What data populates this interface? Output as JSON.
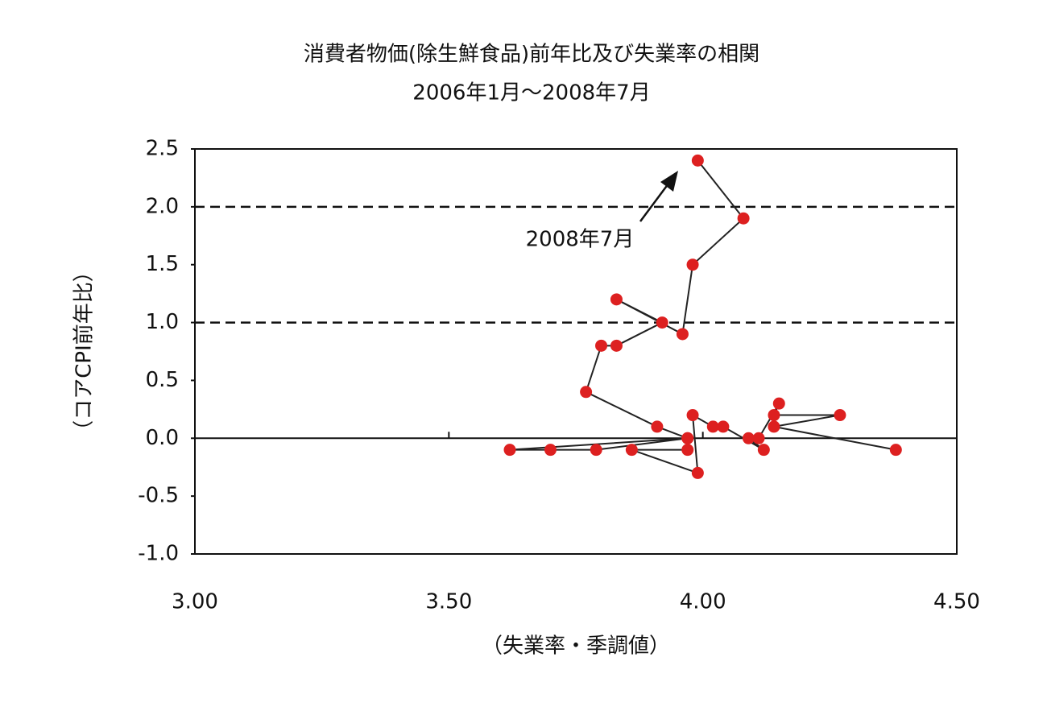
{
  "chart_data": {
    "type": "scatter",
    "title": "消費者物価(除生鮮食品)前年比及び失業率の相関",
    "subtitle": "2006年1月～2008年7月",
    "x_label": "（失業率・季調値）",
    "y_label": "（コアCPI前年比）",
    "annotation": "2008年7月",
    "series": [
      {
        "color": "#dd2020",
        "line_color": "#222222",
        "x": [
          4.38,
          4.14,
          4.27,
          4.14,
          4.15,
          4.11,
          4.09,
          4.12,
          4.04,
          4.02,
          3.98,
          3.99,
          3.86,
          3.97,
          3.97,
          3.79,
          3.7,
          3.62,
          3.97,
          3.91,
          3.77,
          3.8,
          3.83,
          3.92,
          3.83,
          3.96,
          3.98,
          4.08,
          3.99
        ],
        "values": [
          -0.1,
          0.1,
          0.2,
          0.2,
          0.3,
          0.0,
          0.0,
          -0.1,
          0.1,
          0.1,
          0.2,
          -0.3,
          -0.1,
          -0.1,
          0.0,
          -0.1,
          -0.1,
          -0.1,
          0.0,
          0.1,
          0.4,
          0.8,
          0.8,
          1.0,
          1.2,
          0.9,
          1.5,
          1.9,
          2.4
        ]
      }
    ],
    "xlim": [
      3,
      4.5
    ],
    "xticks": [
      {
        "value": 3,
        "label": "3.00"
      },
      {
        "value": 3.5,
        "label": "3.50"
      },
      {
        "value": 4,
        "label": "4.00"
      },
      {
        "value": 4.5,
        "label": "4.50"
      }
    ],
    "ylim": [
      -1,
      2.5
    ],
    "yticks": [
      {
        "value": -1,
        "label": "-1.0"
      },
      -0.5,
      {
        "value": 0,
        "label": "0.0"
      },
      0.5,
      {
        "value": 1,
        "label": "1.0"
      },
      1.5,
      {
        "value": 2,
        "label": "2.0"
      },
      2.5
    ],
    "reference_lines": [
      1,
      2
    ]
  }
}
